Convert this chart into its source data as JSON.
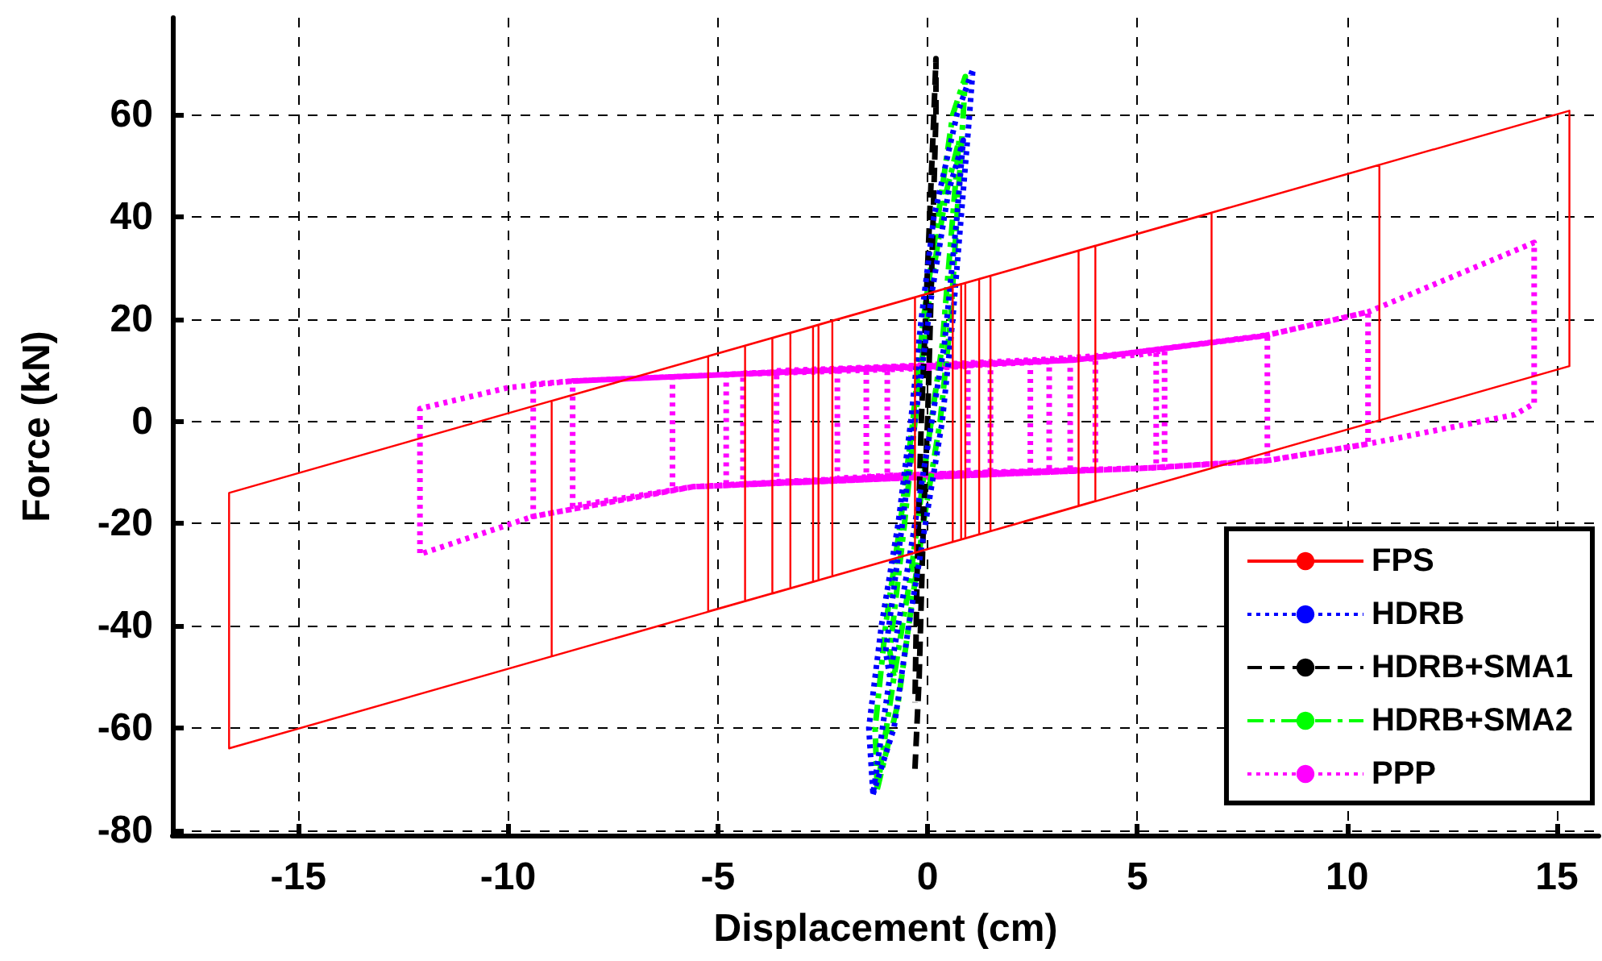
{
  "chart_data": {
    "type": "line",
    "xlabel": "Displacement (cm)",
    "ylabel": "Force (kN)",
    "xlim": [
      -18,
      16
    ],
    "ylim": [
      -81,
      79
    ],
    "xticks": [
      -15,
      -10,
      -5,
      0,
      5,
      10,
      15
    ],
    "yticks": [
      -80,
      -60,
      -40,
      -20,
      0,
      20,
      40,
      60
    ],
    "grid": true,
    "legend": "bottom right",
    "marker": "none",
    "series": [
      {
        "name": "FPS",
        "color": "#ff0000",
        "line_style": "solid",
        "x": [
          0,
          0.6,
          0.6,
          -0.3,
          -0.3,
          0.8,
          0.8,
          -2.27,
          -2.27,
          0.9,
          0.9,
          -2.73,
          -2.73,
          1.23,
          1.23,
          -2.6,
          -2.6,
          1.5,
          1.5,
          -3.27,
          -3.27,
          3.6,
          3.6,
          -3.7,
          -3.7,
          4.0,
          4.0,
          -4.35,
          -4.35,
          6.77,
          6.77,
          -5.23,
          -5.23,
          10.77,
          10.77,
          -8.96,
          -8.96,
          15.3,
          15.3,
          -16.65,
          -16.65,
          -5
        ],
        "values": [
          25,
          26.4,
          -23.6,
          -25.7,
          24.3,
          26.9,
          -23.1,
          -30.3,
          19.7,
          27.1,
          -22.9,
          -31.4,
          18.6,
          27.9,
          -22.1,
          -31.1,
          18.9,
          28.5,
          -21.5,
          -32.7,
          17.3,
          33.4,
          -16.6,
          -33.7,
          16.3,
          34.4,
          -15.6,
          -35.2,
          14.8,
          40.8,
          -9.2,
          -37.2,
          12.8,
          50.2,
          0.2,
          -46.0,
          4.0,
          60.8,
          10.8,
          -64.0,
          -14.0,
          13.3
        ]
      },
      {
        "name": "HDRB",
        "color": "#0000ff",
        "line_style": "dotted",
        "x": [
          -1.3,
          -0.8,
          -0.45,
          -0.05,
          0.35,
          0.6,
          0.8,
          1.0,
          1.08,
          0.7,
          0.15,
          -0.15,
          -0.4,
          -0.7,
          -1.1,
          -1.4,
          -1.3,
          -0.9,
          -0.5,
          0,
          0.4,
          0.7,
          0.85,
          0.5,
          0.1,
          -0.3,
          -0.6,
          -1.0,
          -0.9
        ],
        "values": [
          -73,
          -60,
          -40,
          -20,
          0,
          20,
          40,
          60,
          69,
          60,
          40,
          20,
          0,
          -20,
          -40,
          -60,
          -73,
          -50,
          -30,
          -5,
          15,
          40,
          55,
          45,
          25,
          0,
          -20,
          -45,
          -50
        ]
      },
      {
        "name": "HDRB+SMA1",
        "color": "#000000",
        "line_style": "dashed",
        "x": [
          -0.3,
          -0.2,
          -0.1,
          0,
          0.1,
          0.2,
          0.2,
          0.15,
          0,
          -0.15,
          -0.25,
          -0.3
        ],
        "values": [
          -68,
          -50,
          -20,
          0,
          30,
          60,
          71,
          60,
          30,
          0,
          -30,
          -55
        ]
      },
      {
        "name": "HDRB+SMA2",
        "color": "#00ff00",
        "line_style": "dashdot",
        "x": [
          -1.2,
          -0.7,
          -0.45,
          -0.1,
          0.3,
          0.55,
          0.7,
          0.85,
          0.9,
          0.6,
          0.25,
          -0.1,
          -0.35,
          -0.65,
          -1.0,
          -1.25,
          -1.2,
          -0.8,
          -0.4,
          0,
          0.35,
          0.6,
          0.75,
          0.45,
          0.05,
          -0.3,
          -0.55,
          -0.9,
          -0.8
        ],
        "values": [
          -72,
          -55,
          -40,
          -20,
          0,
          20,
          40,
          60,
          67.5,
          60,
          40,
          20,
          0,
          -20,
          -40,
          -60,
          -72,
          -50,
          -30,
          -5,
          15,
          40,
          55,
          45,
          25,
          0,
          -20,
          -45,
          -50
        ]
      },
      {
        "name": "PPP",
        "color": "#ff00ff",
        "line_style": "dotted",
        "x": [
          0,
          0.96,
          0.96,
          -0.96,
          -0.96,
          1.5,
          1.5,
          -1.46,
          -1.46,
          2.45,
          2.45,
          -2.15,
          -2.15,
          2.9,
          2.9,
          -3.6,
          -3.6,
          3.4,
          3.4,
          -4.4,
          -4.4,
          4.0,
          4.0,
          -4.8,
          -4.8,
          5,
          5.45,
          5.45,
          0.85,
          -5.6,
          -6.08,
          -6.08,
          -5,
          0,
          5.65,
          5.65,
          -5.6,
          -8.46,
          -8.46,
          -5,
          3.5,
          8.1,
          8.1,
          5.3,
          -5.6,
          -9.4,
          -9.4,
          -8.46,
          -5,
          3.5,
          8,
          10.5,
          10.5,
          8.15,
          5.3,
          -5.6,
          -9.4,
          -12.1,
          -12.1,
          -10,
          -8.46,
          -5,
          3.5,
          8,
          10.5,
          14.46,
          14.46,
          14,
          12.4,
          10.5,
          8.15,
          5.3,
          0
        ],
        "values": [
          10.4,
          10.8,
          -10.1,
          -10.6,
          10.3,
          11.1,
          -10.0,
          -10.8,
          10.2,
          11.5,
          -9.8,
          -11.1,
          10.1,
          11.7,
          -9.7,
          -11.8,
          9.9,
          12.0,
          -9.6,
          -12.2,
          9.4,
          12.3,
          -9.4,
          -12.4,
          9.2,
          13,
          13.5,
          -9.1,
          -10.1,
          -12.8,
          -13.4,
          8.7,
          9.1,
          10.4,
          13.8,
          -9.0,
          -12.8,
          -16.6,
          7.9,
          9.1,
          12,
          16.9,
          -7.7,
          -9.1,
          -12.8,
          -18.6,
          7.3,
          7.9,
          9.1,
          12,
          16.7,
          21.4,
          -4.4,
          -7.6,
          -9.1,
          -12.8,
          -18.6,
          -26,
          2.5,
          6.6,
          7.9,
          9.1,
          12,
          16.7,
          21.4,
          35,
          3.5,
          1.3,
          -1.3,
          -4.4,
          -7.6,
          -9.1,
          -10.3
        ]
      }
    ]
  }
}
